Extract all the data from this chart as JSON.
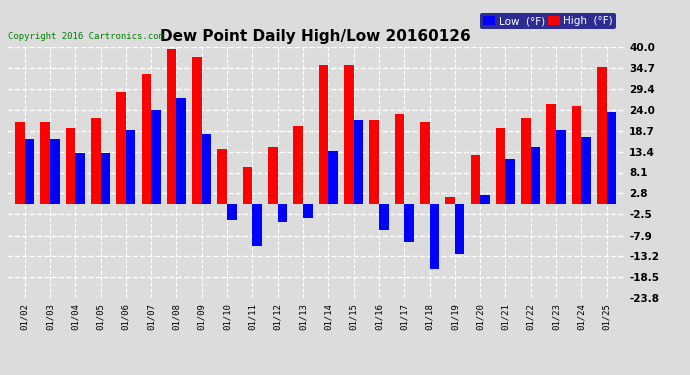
{
  "title": "Dew Point Daily High/Low 20160126",
  "copyright": "Copyright 2016 Cartronics.com",
  "dates": [
    "01/02",
    "01/03",
    "01/04",
    "01/05",
    "01/06",
    "01/07",
    "01/08",
    "01/09",
    "01/10",
    "01/11",
    "01/12",
    "01/13",
    "01/14",
    "01/15",
    "01/16",
    "01/17",
    "01/18",
    "01/19",
    "01/20",
    "01/21",
    "01/22",
    "01/23",
    "01/24",
    "01/25"
  ],
  "high": [
    21.0,
    21.0,
    19.5,
    22.0,
    28.5,
    33.0,
    39.5,
    37.5,
    14.0,
    9.5,
    14.5,
    20.0,
    35.5,
    35.5,
    21.5,
    23.0,
    21.0,
    2.0,
    12.5,
    19.5,
    22.0,
    25.5,
    25.0,
    35.0
  ],
  "low": [
    16.5,
    16.5,
    13.0,
    13.0,
    19.0,
    24.0,
    27.0,
    18.0,
    -4.0,
    -10.5,
    -4.5,
    -3.5,
    13.5,
    21.5,
    -6.5,
    -9.5,
    -16.5,
    -12.5,
    2.5,
    11.5,
    14.5,
    19.0,
    17.0,
    23.5
  ],
  "yticks": [
    40.0,
    34.7,
    29.4,
    24.0,
    18.7,
    13.4,
    8.1,
    2.8,
    -2.5,
    -7.9,
    -13.2,
    -18.5,
    -23.8
  ],
  "ylim_min": -23.8,
  "ylim_max": 40.0,
  "high_color": "#FF0000",
  "low_color": "#0000FF",
  "bg_color": "#DCDCDC",
  "grid_color": "#FFFFFF",
  "bar_width": 0.38,
  "title_fontsize": 11,
  "copyright_color": "#008000",
  "legend_bg": "#000080"
}
